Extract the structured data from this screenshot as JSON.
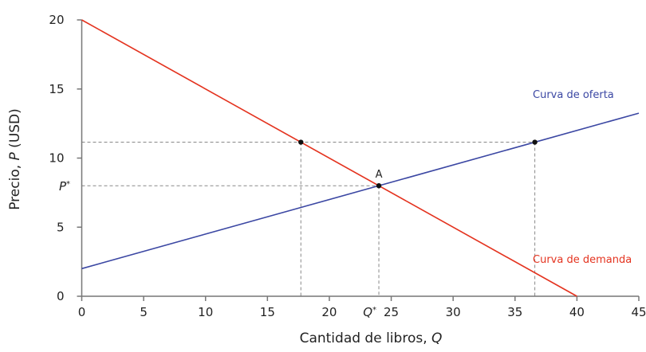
{
  "chart_data": {
    "type": "line",
    "title": "",
    "xlabel": "Cantidad de libros, ",
    "xlabel_var": "Q",
    "ylabel": "Precio, ",
    "ylabel_var": "P",
    "ylabel_unit": " (USD)",
    "xlim": [
      0,
      45
    ],
    "ylim": [
      0,
      20
    ],
    "xticks": [
      0,
      5,
      10,
      15,
      20,
      25,
      30,
      35,
      40,
      45
    ],
    "yticks": [
      0,
      5,
      10,
      15,
      20
    ],
    "grid": false,
    "series": [
      {
        "name": "Curva de demanda",
        "color": "#e4331f",
        "x": [
          0,
          40
        ],
        "y": [
          20,
          0
        ]
      },
      {
        "name": "Curva de oferta",
        "color": "#3b47a3",
        "x": [
          0,
          45
        ],
        "y": [
          2,
          13.25
        ]
      }
    ],
    "points": [
      {
        "label": "A",
        "x": 24,
        "y": 8
      },
      {
        "label": "",
        "x": 17.7,
        "y": 11.15
      },
      {
        "label": "",
        "x": 36.6,
        "y": 11.15
      }
    ],
    "equilibrium": {
      "q_label": "Q",
      "p_label": "P",
      "star": "*",
      "q": 24,
      "p": 8
    },
    "dashed_price": 11.15
  }
}
